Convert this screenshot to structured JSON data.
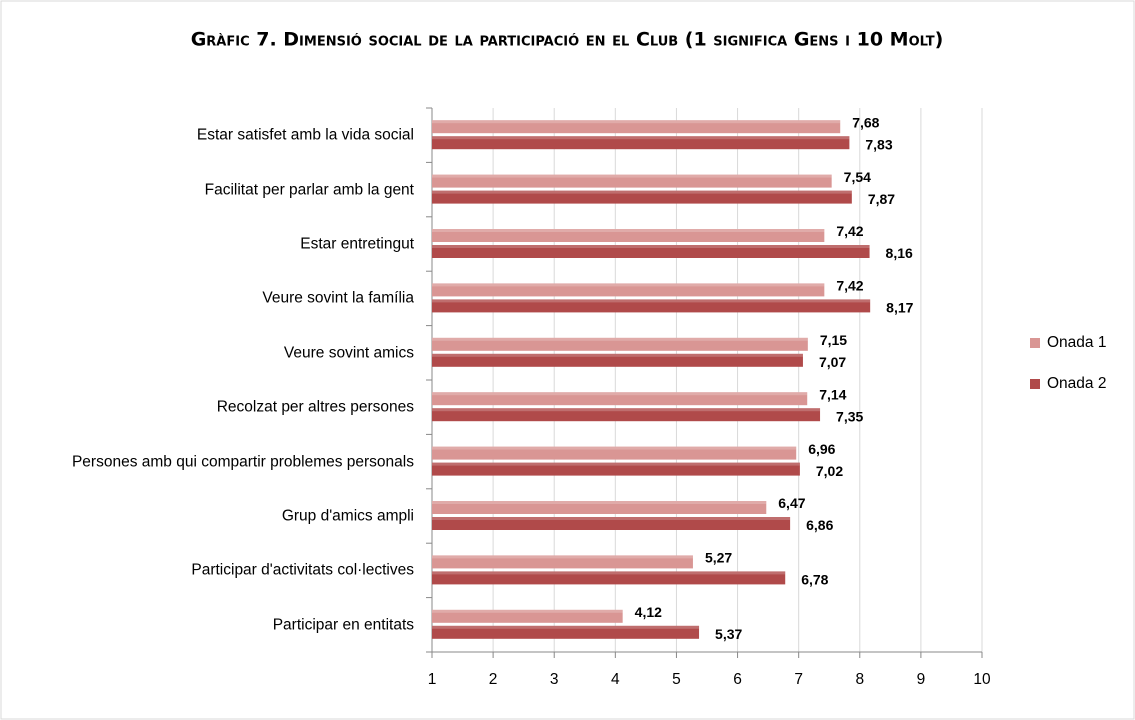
{
  "chart_data": {
    "type": "hbar",
    "title": "Gràfic 7. Dimensió social de la participació en el Club (1 significa Gens i 10 Molt)",
    "categories": [
      "Estar satisfet amb la vida social",
      "Facilitat per parlar amb la gent",
      "Estar entretingut",
      "Veure sovint la família",
      "Veure sovint amics",
      "Recolzat per altres persones",
      "Persones amb qui compartir problemes personals",
      "Grup d'amics ampli",
      "Participar d'activitats col·lectives",
      "Participar en entitats"
    ],
    "series": [
      {
        "name": "Onada 1",
        "color": "#d99694",
        "values": [
          7.68,
          7.54,
          7.42,
          7.42,
          7.15,
          7.14,
          6.96,
          6.47,
          5.27,
          4.12
        ],
        "value_labels": [
          "7,68",
          "7,54",
          "7,42",
          "7,42",
          "7,15",
          "7,14",
          "6,96",
          "6,47",
          "5,27",
          "4,12"
        ]
      },
      {
        "name": "Onada 2",
        "color": "#b04a4a",
        "values": [
          7.83,
          7.87,
          8.16,
          8.17,
          7.07,
          7.35,
          7.02,
          6.86,
          6.78,
          5.37
        ],
        "value_labels": [
          "7,83",
          "7,87",
          "8,16",
          "8,17",
          "7,07",
          "7,35",
          "7,02",
          "6,86",
          "6,78",
          "5,37"
        ]
      }
    ],
    "xlim": [
      1,
      10
    ],
    "xticks": [
      1,
      2,
      3,
      4,
      5,
      6,
      7,
      8,
      9,
      10
    ],
    "grid": true,
    "legend": "right"
  }
}
